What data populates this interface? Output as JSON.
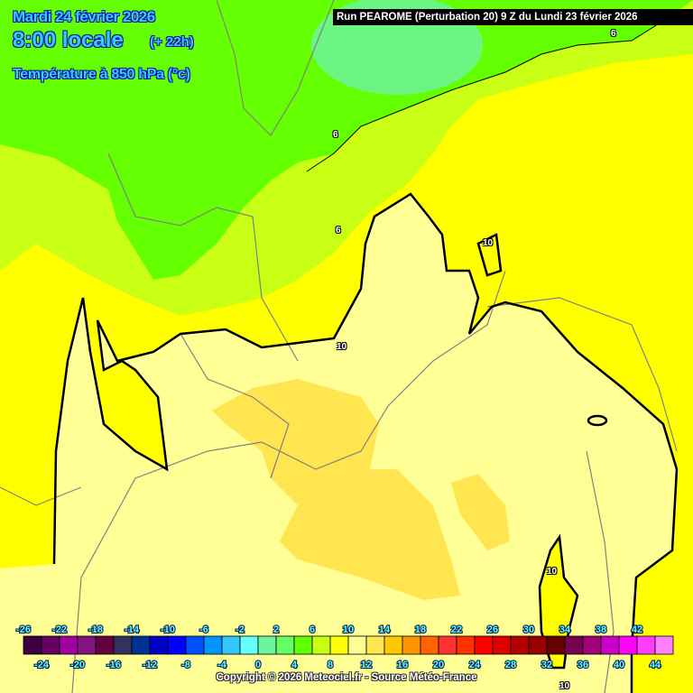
{
  "header": {
    "date": "Mardi 24 février 2026",
    "time": "8:00 locale",
    "lead": "(+ 22h)",
    "parameter": "Température à 850 hPa (°c)",
    "run": "Run PEAROME (Perturbation 20) 9 Z du Lundi 23 février 2026"
  },
  "map": {
    "field_colors": {
      "green": "#64ff00",
      "yellow_green": "#c8ff14",
      "aqua_green": "#6cf59a",
      "yellow": "#ffff00",
      "pale_yellow": "#ffff96",
      "light_orange": "#ffe650"
    },
    "contour_labels": [
      "6",
      "6",
      "6",
      "10",
      "10",
      "10",
      "10"
    ]
  },
  "legend": {
    "colors": [
      "#3c0040",
      "#64005f",
      "#a000a0",
      "#821482",
      "#640040",
      "#32325f",
      "#003296",
      "#0000c8",
      "#0000ff",
      "#0050ff",
      "#0096ff",
      "#32c8ff",
      "#64ffff",
      "#6cf59a",
      "#64ff64",
      "#64ff00",
      "#c8ff14",
      "#ffff00",
      "#ffff96",
      "#ffe650",
      "#ffc800",
      "#ff9600",
      "#ff6400",
      "#ff3232",
      "#ff3200",
      "#ff0000",
      "#dc0000",
      "#b40000",
      "#960000",
      "#640000",
      "#780050",
      "#a00078",
      "#c800c8",
      "#ff00ff",
      "#ff3cff",
      "#ff80ff"
    ],
    "top_labels": [
      "-26",
      "-22",
      "-18",
      "-14",
      "-10",
      "-6",
      "-2",
      "2",
      "6",
      "10",
      "14",
      "18",
      "22",
      "26",
      "30",
      "34",
      "38",
      "42"
    ],
    "bottom_labels": [
      "-24",
      "-20",
      "-16",
      "-12",
      "-8",
      "-4",
      "0",
      "4",
      "8",
      "12",
      "16",
      "20",
      "24",
      "28",
      "32",
      "36",
      "40",
      "44"
    ]
  },
  "footer": {
    "copyright": "Copyright © 2026 Meteociel.fr - Source Météo-France"
  }
}
